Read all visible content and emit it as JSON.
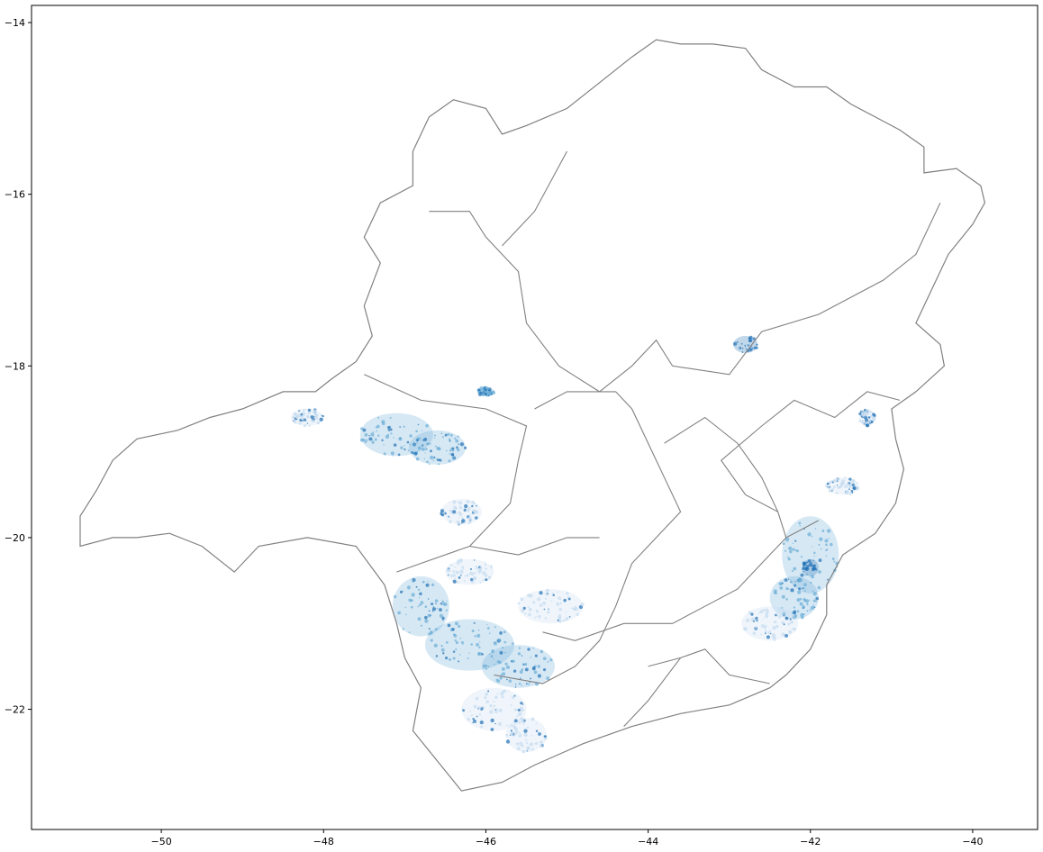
{
  "chart_data": {
    "type": "map",
    "xlim": [
      -51.6,
      -39.2
    ],
    "ylim": [
      -23.4,
      -13.8
    ],
    "x_ticks": [
      -50,
      -48,
      -46,
      -44,
      -42,
      -40
    ],
    "y_ticks": [
      -14,
      -16,
      -18,
      -20,
      -22
    ],
    "x_tick_labels": [
      "−50",
      "−48",
      "−46",
      "−44",
      "−42",
      "−40"
    ],
    "y_tick_labels": [
      "−14",
      "−16",
      "−18",
      "−20",
      "−22"
    ],
    "grid": false,
    "legend": "none",
    "colors": {
      "boundary": "#808080",
      "fill_light": "#c6dbef",
      "fill_mid": "#6baed6",
      "fill_dark": "#2171b5"
    },
    "outline": [
      [
        -43.2,
        -14.25
      ],
      [
        -42.8,
        -14.3
      ],
      [
        -42.6,
        -14.55
      ],
      [
        -42.2,
        -14.75
      ],
      [
        -41.8,
        -14.75
      ],
      [
        -41.5,
        -14.95
      ],
      [
        -41.2,
        -15.1
      ],
      [
        -40.9,
        -15.25
      ],
      [
        -40.6,
        -15.45
      ],
      [
        -40.6,
        -15.75
      ],
      [
        -40.2,
        -15.7
      ],
      [
        -39.9,
        -15.9
      ],
      [
        -39.85,
        -16.1
      ],
      [
        -40.0,
        -16.35
      ],
      [
        -40.3,
        -16.7
      ],
      [
        -40.5,
        -17.1
      ],
      [
        -40.7,
        -17.5
      ],
      [
        -40.4,
        -17.75
      ],
      [
        -40.35,
        -18.0
      ],
      [
        -40.7,
        -18.3
      ],
      [
        -41.0,
        -18.5
      ],
      [
        -40.95,
        -18.85
      ],
      [
        -40.85,
        -19.2
      ],
      [
        -40.95,
        -19.6
      ],
      [
        -41.2,
        -19.95
      ],
      [
        -41.6,
        -20.2
      ],
      [
        -41.8,
        -20.55
      ],
      [
        -41.8,
        -20.9
      ],
      [
        -42.0,
        -21.3
      ],
      [
        -42.3,
        -21.6
      ],
      [
        -42.5,
        -21.75
      ],
      [
        -43.0,
        -21.95
      ],
      [
        -43.6,
        -22.05
      ],
      [
        -44.2,
        -22.2
      ],
      [
        -44.8,
        -22.4
      ],
      [
        -45.4,
        -22.65
      ],
      [
        -45.8,
        -22.85
      ],
      [
        -46.3,
        -22.95
      ],
      [
        -46.6,
        -22.6
      ],
      [
        -46.9,
        -22.25
      ],
      [
        -46.8,
        -21.75
      ],
      [
        -47.0,
        -21.4
      ],
      [
        -47.1,
        -21.0
      ],
      [
        -47.25,
        -20.55
      ],
      [
        -47.6,
        -20.1
      ],
      [
        -48.2,
        -20.0
      ],
      [
        -48.8,
        -20.1
      ],
      [
        -49.1,
        -20.4
      ],
      [
        -49.5,
        -20.1
      ],
      [
        -49.9,
        -19.95
      ],
      [
        -50.3,
        -20.0
      ],
      [
        -50.6,
        -20.0
      ],
      [
        -51.0,
        -20.1
      ],
      [
        -51.0,
        -19.75
      ],
      [
        -50.8,
        -19.45
      ],
      [
        -50.6,
        -19.1
      ],
      [
        -50.3,
        -18.85
      ],
      [
        -49.8,
        -18.75
      ],
      [
        -49.4,
        -18.6
      ],
      [
        -49.0,
        -18.5
      ],
      [
        -48.5,
        -18.3
      ],
      [
        -48.1,
        -18.3
      ],
      [
        -47.9,
        -18.15
      ],
      [
        -47.6,
        -17.95
      ],
      [
        -47.4,
        -17.65
      ],
      [
        -47.5,
        -17.3
      ],
      [
        -47.3,
        -16.8
      ],
      [
        -47.5,
        -16.5
      ],
      [
        -47.3,
        -16.1
      ],
      [
        -46.9,
        -15.9
      ],
      [
        -46.9,
        -15.5
      ],
      [
        -46.7,
        -15.1
      ],
      [
        -46.4,
        -14.9
      ],
      [
        -46.0,
        -15.0
      ],
      [
        -45.8,
        -15.3
      ],
      [
        -45.5,
        -15.2
      ],
      [
        -45.0,
        -15.0
      ],
      [
        -44.6,
        -14.7
      ],
      [
        -44.2,
        -14.4
      ],
      [
        -43.9,
        -14.2
      ],
      [
        -43.6,
        -14.25
      ],
      [
        -43.2,
        -14.25
      ]
    ],
    "region_boundaries": [
      [
        [
          -46.7,
          -16.2
        ],
        [
          -46.2,
          -16.2
        ],
        [
          -46.0,
          -16.5
        ],
        [
          -45.6,
          -16.9
        ],
        [
          -45.5,
          -17.5
        ],
        [
          -45.1,
          -18.0
        ],
        [
          -44.6,
          -18.3
        ],
        [
          -44.2,
          -18.0
        ],
        [
          -43.9,
          -17.7
        ],
        [
          -43.7,
          -18.0
        ],
        [
          -43.0,
          -18.1
        ],
        [
          -42.6,
          -17.6
        ],
        [
          -41.9,
          -17.4
        ],
        [
          -41.1,
          -17.0
        ],
        [
          -40.7,
          -16.7
        ],
        [
          -40.4,
          -16.1
        ]
      ],
      [
        [
          -45.0,
          -15.5
        ],
        [
          -45.4,
          -16.2
        ],
        [
          -45.8,
          -16.6
        ]
      ],
      [
        [
          -47.5,
          -18.1
        ],
        [
          -46.8,
          -18.4
        ],
        [
          -46.0,
          -18.5
        ],
        [
          -45.5,
          -18.7
        ],
        [
          -45.6,
          -19.1
        ],
        [
          -45.7,
          -19.6
        ],
        [
          -45.9,
          -19.8
        ],
        [
          -46.2,
          -20.1
        ],
        [
          -46.8,
          -20.3
        ],
        [
          -47.1,
          -20.4
        ]
      ],
      [
        [
          -45.4,
          -18.5
        ],
        [
          -45.0,
          -18.3
        ],
        [
          -44.4,
          -18.3
        ],
        [
          -44.2,
          -18.5
        ],
        [
          -44.0,
          -18.9
        ],
        [
          -43.8,
          -19.3
        ],
        [
          -43.6,
          -19.7
        ],
        [
          -43.9,
          -20.0
        ],
        [
          -44.2,
          -20.3
        ],
        [
          -44.4,
          -20.8
        ],
        [
          -44.6,
          -21.2
        ],
        [
          -44.9,
          -21.5
        ],
        [
          -45.3,
          -21.7
        ],
        [
          -45.9,
          -21.6
        ]
      ],
      [
        [
          -46.2,
          -20.1
        ],
        [
          -45.6,
          -20.2
        ],
        [
          -45.0,
          -20.0
        ],
        [
          -44.6,
          -20.0
        ]
      ],
      [
        [
          -45.3,
          -21.1
        ],
        [
          -44.9,
          -21.2
        ],
        [
          -44.3,
          -21.0
        ],
        [
          -43.7,
          -21.0
        ],
        [
          -43.3,
          -20.8
        ],
        [
          -42.9,
          -20.6
        ],
        [
          -42.6,
          -20.3
        ],
        [
          -42.3,
          -20.0
        ],
        [
          -41.9,
          -19.8
        ]
      ],
      [
        [
          -43.8,
          -18.9
        ],
        [
          -43.3,
          -18.6
        ],
        [
          -42.9,
          -18.9
        ],
        [
          -42.6,
          -19.3
        ],
        [
          -42.4,
          -19.7
        ],
        [
          -42.3,
          -20.0
        ]
      ],
      [
        [
          -42.4,
          -19.7
        ],
        [
          -42.8,
          -19.5
        ],
        [
          -43.1,
          -19.1
        ],
        [
          -42.6,
          -18.7
        ],
        [
          -42.2,
          -18.4
        ],
        [
          -41.7,
          -18.6
        ],
        [
          -41.3,
          -18.3
        ],
        [
          -40.9,
          -18.4
        ]
      ],
      [
        [
          -44.0,
          -21.5
        ],
        [
          -43.6,
          -21.4
        ],
        [
          -43.3,
          -21.3
        ],
        [
          -43.0,
          -21.6
        ],
        [
          -42.5,
          -21.7
        ]
      ],
      [
        [
          -43.6,
          -21.4
        ],
        [
          -44.0,
          -21.9
        ],
        [
          -44.3,
          -22.2
        ]
      ]
    ],
    "density_clusters": [
      {
        "lon": -47.1,
        "lat": -18.8,
        "rx": 0.45,
        "ry": 0.25,
        "level": "mid"
      },
      {
        "lon": -46.6,
        "lat": -18.95,
        "rx": 0.35,
        "ry": 0.2,
        "level": "mid"
      },
      {
        "lon": -48.2,
        "lat": -18.6,
        "rx": 0.2,
        "ry": 0.1,
        "level": "light"
      },
      {
        "lon": -46.3,
        "lat": -19.7,
        "rx": 0.25,
        "ry": 0.15,
        "level": "light"
      },
      {
        "lon": -46.8,
        "lat": -20.8,
        "rx": 0.35,
        "ry": 0.35,
        "level": "mid"
      },
      {
        "lon": -46.2,
        "lat": -21.25,
        "rx": 0.55,
        "ry": 0.3,
        "level": "mid"
      },
      {
        "lon": -45.6,
        "lat": -21.5,
        "rx": 0.45,
        "ry": 0.25,
        "level": "mid"
      },
      {
        "lon": -45.9,
        "lat": -22.0,
        "rx": 0.4,
        "ry": 0.25,
        "level": "light"
      },
      {
        "lon": -45.5,
        "lat": -22.3,
        "rx": 0.25,
        "ry": 0.2,
        "level": "light"
      },
      {
        "lon": -46.2,
        "lat": -20.4,
        "rx": 0.3,
        "ry": 0.15,
        "level": "light"
      },
      {
        "lon": -45.2,
        "lat": -20.8,
        "rx": 0.4,
        "ry": 0.2,
        "level": "light"
      },
      {
        "lon": -42.0,
        "lat": -20.2,
        "rx": 0.35,
        "ry": 0.45,
        "level": "mid"
      },
      {
        "lon": -42.2,
        "lat": -20.7,
        "rx": 0.3,
        "ry": 0.25,
        "level": "mid"
      },
      {
        "lon": -41.6,
        "lat": -19.4,
        "rx": 0.2,
        "ry": 0.1,
        "level": "light"
      },
      {
        "lon": -42.5,
        "lat": -21.0,
        "rx": 0.35,
        "ry": 0.2,
        "level": "light"
      },
      {
        "lon": -42.8,
        "lat": -17.75,
        "rx": 0.15,
        "ry": 0.1,
        "level": "dark"
      },
      {
        "lon": -42.0,
        "lat": -20.35,
        "rx": 0.1,
        "ry": 0.1,
        "level": "dark"
      },
      {
        "lon": -46.0,
        "lat": -18.3,
        "rx": 0.1,
        "ry": 0.05,
        "level": "mid"
      },
      {
        "lon": -41.3,
        "lat": -18.6,
        "rx": 0.1,
        "ry": 0.1,
        "level": "light"
      }
    ]
  }
}
